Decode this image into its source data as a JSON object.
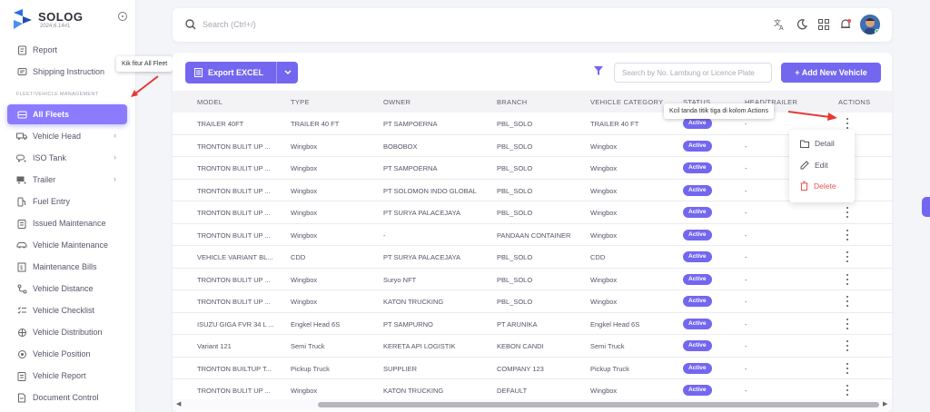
{
  "app": {
    "name": "SOLOG",
    "version": "2024.6.14#1"
  },
  "search": {
    "placeholder": "Search (Ctrl+/)"
  },
  "sidebar": {
    "section_label": "FLEET/VEHICLE MANAGEMENT",
    "items": [
      {
        "label": "Report",
        "icon": "report-icon"
      },
      {
        "label": "Shipping Instruction",
        "icon": "chat-icon"
      },
      {
        "label": "All Fleets",
        "icon": "fleet-icon",
        "active": true
      },
      {
        "label": "Vehicle Head",
        "icon": "truck-icon"
      },
      {
        "label": "ISO Tank",
        "icon": "tank-icon"
      },
      {
        "label": "Trailer",
        "icon": "trailer-icon"
      },
      {
        "label": "Fuel Entry",
        "icon": "fuel-icon"
      },
      {
        "label": "Issued Maintenance",
        "icon": "clipboard-icon"
      },
      {
        "label": "Vehicle Maintenance",
        "icon": "car-icon"
      },
      {
        "label": "Maintenance Bills",
        "icon": "bill-icon"
      },
      {
        "label": "Vehicle Distance",
        "icon": "route-icon"
      },
      {
        "label": "Vehicle Checklist",
        "icon": "checklist-icon"
      },
      {
        "label": "Vehicle Distribution",
        "icon": "distribution-icon"
      },
      {
        "label": "Vehicle Position",
        "icon": "position-icon"
      },
      {
        "label": "Vehicle Report",
        "icon": "clipboard-icon"
      },
      {
        "label": "Document Control",
        "icon": "document-icon"
      }
    ]
  },
  "annotations": {
    "sidebar_tip": "Kik fitur All Fleet",
    "actions_tip": "Kcil tanda titik tiga di kolom Actions"
  },
  "toolbar": {
    "export_label": "Export EXCEL",
    "search_placeholder": "Search by No. Lambung or Licence Plate",
    "add_label": "+ Add New Vehicle"
  },
  "table": {
    "columns": [
      "MODEL",
      "TYPE",
      "OWNER",
      "BRANCH",
      "VEHICLE CATEGORY",
      "STATUS",
      "HEAD/TRAILER",
      "ACTIONS"
    ],
    "rows": [
      {
        "model": "TRAILER 40FT",
        "type": "TRAILER 40 FT",
        "owner": "PT SAMPOERNA",
        "branch": "PBL_SOLO",
        "category": "TRAILER 40 FT",
        "status": "Active",
        "head": "-"
      },
      {
        "model": "TRONTON BULIT UP ...",
        "type": "Wingbox",
        "owner": "BOBOBOX",
        "branch": "PBL_SOLO",
        "category": "Wingbox",
        "status": "Active",
        "head": "-"
      },
      {
        "model": "TRONTON BULIT UP ...",
        "type": "Wingbox",
        "owner": "PT SAMPOERNA",
        "branch": "PBL_SOLO",
        "category": "Wingbox",
        "status": "Active",
        "head": "-"
      },
      {
        "model": "TRONTON BULIT UP ...",
        "type": "Wingbox",
        "owner": "PT SOLOMON INDO GLOBAL",
        "branch": "PBL_SOLO",
        "category": "Wingbox",
        "status": "Active",
        "head": "-"
      },
      {
        "model": "TRONTON BULIT UP ...",
        "type": "Wingbox",
        "owner": "PT SURYA PALACEJAYA",
        "branch": "PBL_SOLO",
        "category": "Wingbox",
        "status": "Active",
        "head": "-"
      },
      {
        "model": "TRONTON BULIT UP ...",
        "type": "Wingbox",
        "owner": "-",
        "branch": "PANDAAN CONTAINER",
        "category": "Wingbox",
        "status": "Active",
        "head": "-"
      },
      {
        "model": "VEHICLE VARIANT BL...",
        "type": "CDD",
        "owner": "PT SURYA PALACEJAYA",
        "branch": "PBL_SOLO",
        "category": "CDD",
        "status": "Active",
        "head": "-"
      },
      {
        "model": "TRONTON BULIT UP ...",
        "type": "Wingbox",
        "owner": "Suryo NFT",
        "branch": "PBL_SOLO",
        "category": "Wingbox",
        "status": "Active",
        "head": "-"
      },
      {
        "model": "TRONTON BULIT UP ...",
        "type": "Wingbox",
        "owner": "KATON TRUCKING",
        "branch": "PBL_SOLO",
        "category": "Wingbox",
        "status": "Active",
        "head": "-"
      },
      {
        "model": "ISUZU GIGA FVR 34 L ...",
        "type": "Engkel Head 6S",
        "owner": "PT SAMPURNO",
        "branch": "PT ARUNIKA",
        "category": "Engkel Head 6S",
        "status": "Active",
        "head": "-"
      },
      {
        "model": "Variant 121",
        "type": "Semi Truck",
        "owner": "KERETA API LOGISTIK",
        "branch": "KEBON CANDI",
        "category": "Semi Truck",
        "status": "Active",
        "head": "-"
      },
      {
        "model": "TRONTON BUILTUP T...",
        "type": "Pickup Truck",
        "owner": "SUPPLIER",
        "branch": "COMPANY 123",
        "category": "Pickup Truck",
        "status": "Active",
        "head": "-"
      },
      {
        "model": "TRONTON BULIT UP ...",
        "type": "Wingbox",
        "owner": "KATON TRUCKING",
        "branch": "DEFAULT",
        "category": "Wingbox",
        "status": "Active",
        "head": "-"
      }
    ]
  },
  "actions_menu": {
    "detail": "Detail",
    "edit": "Edit",
    "delete": "Delete"
  },
  "colors": {
    "primary": "#7367f0",
    "danger": "#ea5455",
    "annotation_arrow": "#e53935"
  }
}
